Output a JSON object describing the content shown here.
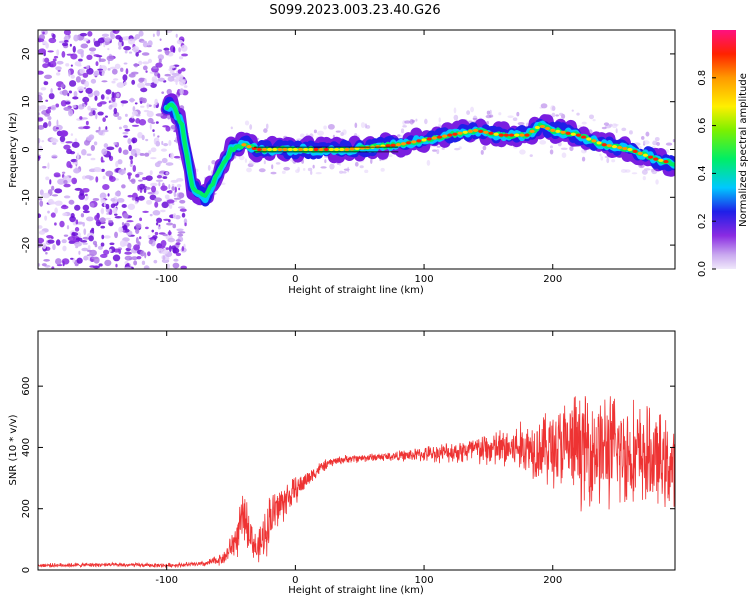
{
  "title": "S099.2023.003.23.40.G26",
  "chart_data": [
    {
      "type": "heatmap",
      "xlabel": "Height of straight line (km)",
      "ylabel": "Frequency (Hz)",
      "xlim": [
        -200,
        295
      ],
      "ylim": [
        -25,
        25
      ],
      "x_ticks": [
        "-100",
        "0",
        "100",
        "200"
      ],
      "y_ticks": [
        "-20",
        "-10",
        "0",
        "10",
        "20"
      ],
      "colorbar": {
        "label": "Normalized spectral amplitude",
        "range": [
          0,
          1
        ],
        "ticks": [
          "0.0",
          "0.2",
          "0.4",
          "0.6",
          "0.8"
        ],
        "colormap": "rainbow (purple to red)"
      },
      "grid": false,
      "ridge": {
        "x": [
          -95,
          -88,
          -80,
          -70,
          -60,
          -50,
          -40,
          -30,
          -20,
          0,
          20,
          40,
          60,
          80,
          100,
          120,
          140,
          160,
          180,
          190,
          200,
          220,
          240,
          260,
          280,
          295
        ],
        "y": [
          9,
          5,
          -8,
          -10,
          -5,
          0,
          1,
          0,
          0,
          0,
          0,
          0,
          0.5,
          1,
          2,
          3,
          4,
          3,
          3,
          5,
          4,
          3,
          1,
          0,
          -2,
          -3
        ]
      },
      "noise_region_x": [
        -200,
        -85
      ]
    },
    {
      "type": "line",
      "xlabel": "Height of straight line (km)",
      "ylabel": "SNR (10 * v/v)",
      "xlim": [
        -200,
        295
      ],
      "ylim": [
        0,
        780
      ],
      "x_ticks": [
        "-100",
        "0",
        "100",
        "200"
      ],
      "y_ticks": [
        "0",
        "200",
        "400",
        "600"
      ],
      "color": "#ee3333",
      "grid": false,
      "envelope": {
        "x": [
          -200,
          -150,
          -100,
          -70,
          -55,
          -45,
          -40,
          -35,
          -30,
          -25,
          -20,
          -10,
          0,
          10,
          20,
          30,
          40,
          60,
          80,
          100,
          120,
          140,
          160,
          180,
          200,
          220,
          240,
          260,
          280,
          295
        ],
        "mean": [
          15,
          17,
          15,
          20,
          40,
          110,
          180,
          120,
          60,
          100,
          170,
          220,
          260,
          300,
          335,
          355,
          362,
          368,
          372,
          378,
          385,
          392,
          395,
          400,
          400,
          400,
          395,
          380,
          360,
          330
        ],
        "spread": [
          6,
          6,
          6,
          8,
          20,
          60,
          70,
          60,
          40,
          70,
          80,
          60,
          40,
          25,
          18,
          12,
          12,
          12,
          15,
          22,
          30,
          45,
          60,
          80,
          120,
          160,
          170,
          160,
          140,
          120
        ]
      }
    }
  ]
}
